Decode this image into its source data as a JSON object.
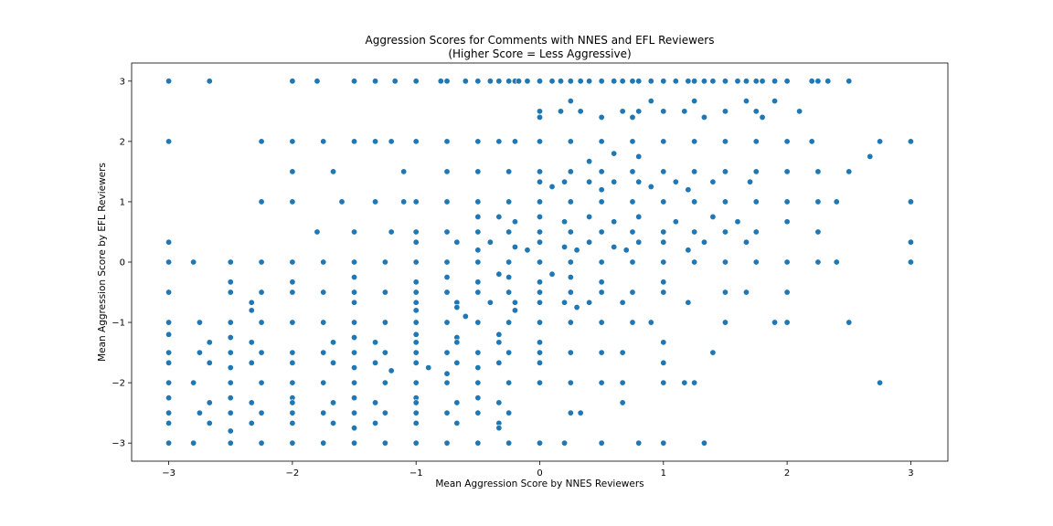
{
  "chart_data": {
    "type": "scatter",
    "title": "Aggression Scores for Comments with NNES and EFL Reviewers",
    "subtitle": "(Higher Score = Less Aggressive)",
    "xlabel": "Mean Aggression Score by NNES Reviewers",
    "ylabel": "Mean Aggression Score by EFL Reviewers",
    "xlim": [
      -3.3,
      3.3
    ],
    "ylim": [
      -3.3,
      3.3
    ],
    "xticks": [
      -3,
      -2,
      -1,
      0,
      1,
      2,
      3
    ],
    "yticks": [
      -3,
      -2,
      -1,
      0,
      1,
      2,
      3
    ],
    "xtick_labels": [
      "−3",
      "−2",
      "−1",
      "0",
      "1",
      "2",
      "3"
    ],
    "ytick_labels": [
      "−3",
      "−2",
      "−1",
      "0",
      "1",
      "2",
      "3"
    ],
    "grid": false,
    "series_color": "#1f77b4",
    "points": [
      [
        -3,
        3
      ],
      [
        -2.67,
        3
      ],
      [
        -2,
        3
      ],
      [
        -1.8,
        3
      ],
      [
        -1.5,
        3
      ],
      [
        -1.33,
        3
      ],
      [
        -1.17,
        3
      ],
      [
        -1,
        3
      ],
      [
        -0.8,
        3
      ],
      [
        -0.75,
        3
      ],
      [
        -0.6,
        3
      ],
      [
        -0.5,
        3
      ],
      [
        -0.4,
        3
      ],
      [
        -0.33,
        3
      ],
      [
        -0.25,
        3
      ],
      [
        -0.2,
        3
      ],
      [
        -0.17,
        3
      ],
      [
        -0.1,
        3
      ],
      [
        0,
        3
      ],
      [
        0.1,
        3
      ],
      [
        0.17,
        3
      ],
      [
        0.25,
        3
      ],
      [
        0.33,
        3
      ],
      [
        0.4,
        3
      ],
      [
        0.5,
        3
      ],
      [
        0.6,
        3
      ],
      [
        0.67,
        3
      ],
      [
        0.75,
        3
      ],
      [
        0.8,
        3
      ],
      [
        0.9,
        3
      ],
      [
        1,
        3
      ],
      [
        1.1,
        3
      ],
      [
        1.2,
        3
      ],
      [
        1.25,
        3
      ],
      [
        1.33,
        3
      ],
      [
        1.4,
        3
      ],
      [
        1.5,
        3
      ],
      [
        1.6,
        3
      ],
      [
        1.67,
        3
      ],
      [
        1.75,
        3
      ],
      [
        1.8,
        3
      ],
      [
        1.9,
        3
      ],
      [
        2,
        3
      ],
      [
        2.2,
        3
      ],
      [
        2.25,
        3
      ],
      [
        2.33,
        3
      ],
      [
        2.5,
        3
      ],
      [
        0,
        2.5
      ],
      [
        0,
        2.4
      ],
      [
        0.17,
        2.5
      ],
      [
        0.25,
        2.67
      ],
      [
        0.33,
        2.5
      ],
      [
        0.5,
        2.4
      ],
      [
        0.67,
        2.5
      ],
      [
        0.75,
        2.4
      ],
      [
        0.8,
        2.5
      ],
      [
        0.9,
        2.67
      ],
      [
        1,
        2.5
      ],
      [
        1.17,
        2.5
      ],
      [
        1.25,
        2.67
      ],
      [
        1.33,
        2.4
      ],
      [
        1.5,
        2.5
      ],
      [
        1.67,
        2.67
      ],
      [
        1.75,
        2.5
      ],
      [
        1.8,
        2.4
      ],
      [
        1.9,
        2.67
      ],
      [
        2.1,
        2.5
      ],
      [
        -3,
        2
      ],
      [
        -2.25,
        2
      ],
      [
        -2,
        2
      ],
      [
        -1.75,
        2
      ],
      [
        -1.5,
        2
      ],
      [
        -1.33,
        2
      ],
      [
        -1.2,
        2
      ],
      [
        -1,
        2
      ],
      [
        -0.75,
        2
      ],
      [
        -0.5,
        2
      ],
      [
        -0.33,
        2
      ],
      [
        -0.2,
        2
      ],
      [
        0,
        2
      ],
      [
        0.25,
        2
      ],
      [
        0.5,
        2
      ],
      [
        0.75,
        2
      ],
      [
        1,
        2
      ],
      [
        1.25,
        2
      ],
      [
        1.5,
        2
      ],
      [
        1.75,
        2
      ],
      [
        2,
        2
      ],
      [
        2.2,
        2
      ],
      [
        2.75,
        2
      ],
      [
        3,
        2
      ],
      [
        2.67,
        1.75
      ],
      [
        0.6,
        1.8
      ],
      [
        0.8,
        1.75
      ],
      [
        0.4,
        1.67
      ],
      [
        -2,
        1.5
      ],
      [
        -1.67,
        1.5
      ],
      [
        -1.1,
        1.5
      ],
      [
        -0.75,
        1.5
      ],
      [
        -0.5,
        1.5
      ],
      [
        -0.25,
        1.5
      ],
      [
        0,
        1.5
      ],
      [
        0.25,
        1.5
      ],
      [
        0.5,
        1.5
      ],
      [
        0.75,
        1.5
      ],
      [
        1,
        1.5
      ],
      [
        1.25,
        1.5
      ],
      [
        1.5,
        1.5
      ],
      [
        1.75,
        1.5
      ],
      [
        2,
        1.5
      ],
      [
        2.25,
        1.5
      ],
      [
        2.5,
        1.5
      ],
      [
        0,
        1.33
      ],
      [
        0.2,
        1.33
      ],
      [
        0.4,
        1.33
      ],
      [
        0.6,
        1.33
      ],
      [
        0.8,
        1.33
      ],
      [
        1.1,
        1.33
      ],
      [
        1.4,
        1.33
      ],
      [
        1.7,
        1.33
      ],
      [
        0.1,
        1.25
      ],
      [
        0.5,
        1.2
      ],
      [
        0.9,
        1.25
      ],
      [
        1.2,
        1.2
      ],
      [
        -2.25,
        1
      ],
      [
        -2,
        1
      ],
      [
        -1.6,
        1
      ],
      [
        -1.33,
        1
      ],
      [
        -1.1,
        1
      ],
      [
        -1,
        1
      ],
      [
        -0.75,
        1
      ],
      [
        -0.5,
        1
      ],
      [
        -0.25,
        1
      ],
      [
        0,
        1
      ],
      [
        0.25,
        1
      ],
      [
        0.5,
        1
      ],
      [
        0.75,
        1
      ],
      [
        1,
        1
      ],
      [
        1.25,
        1
      ],
      [
        1.5,
        1
      ],
      [
        1.75,
        1
      ],
      [
        2,
        1
      ],
      [
        2.25,
        1
      ],
      [
        2.4,
        1
      ],
      [
        3,
        1
      ],
      [
        -0.5,
        0.75
      ],
      [
        -0.33,
        0.75
      ],
      [
        -0.2,
        0.67
      ],
      [
        0,
        0.75
      ],
      [
        0.2,
        0.67
      ],
      [
        0.4,
        0.75
      ],
      [
        0.6,
        0.67
      ],
      [
        0.8,
        0.75
      ],
      [
        1.1,
        0.67
      ],
      [
        1.4,
        0.75
      ],
      [
        1.6,
        0.67
      ],
      [
        2,
        0.67
      ],
      [
        -1.8,
        0.5
      ],
      [
        -1.5,
        0.5
      ],
      [
        -1.2,
        0.5
      ],
      [
        -1,
        0.5
      ],
      [
        -0.75,
        0.5
      ],
      [
        -0.5,
        0.5
      ],
      [
        -0.25,
        0.5
      ],
      [
        0,
        0.5
      ],
      [
        0.25,
        0.5
      ],
      [
        0.5,
        0.5
      ],
      [
        0.75,
        0.5
      ],
      [
        1,
        0.5
      ],
      [
        1.25,
        0.5
      ],
      [
        1.5,
        0.5
      ],
      [
        1.75,
        0.5
      ],
      [
        2.25,
        0.5
      ],
      [
        -1,
        0.33
      ],
      [
        -0.67,
        0.33
      ],
      [
        -0.4,
        0.33
      ],
      [
        -0.2,
        0.25
      ],
      [
        0,
        0.33
      ],
      [
        0.2,
        0.25
      ],
      [
        0.4,
        0.33
      ],
      [
        0.6,
        0.25
      ],
      [
        0.8,
        0.33
      ],
      [
        1,
        0.33
      ],
      [
        1.33,
        0.33
      ],
      [
        1.67,
        0.33
      ],
      [
        3,
        0.33
      ],
      [
        -0.5,
        0.2
      ],
      [
        -0.1,
        0.2
      ],
      [
        0.3,
        0.2
      ],
      [
        0.7,
        0.2
      ],
      [
        1.2,
        0.2
      ],
      [
        -3,
        0.33
      ],
      [
        -3,
        0
      ],
      [
        -2.8,
        0
      ],
      [
        -2.5,
        0
      ],
      [
        -2.25,
        0
      ],
      [
        -2,
        0
      ],
      [
        -1.75,
        0
      ],
      [
        -1.5,
        0
      ],
      [
        -1.25,
        0
      ],
      [
        -1,
        0
      ],
      [
        -0.75,
        0
      ],
      [
        -0.5,
        0
      ],
      [
        -0.25,
        0
      ],
      [
        0,
        0
      ],
      [
        0.25,
        0
      ],
      [
        0.5,
        0
      ],
      [
        0.75,
        0
      ],
      [
        1,
        0
      ],
      [
        1.25,
        0
      ],
      [
        1.5,
        0
      ],
      [
        1.75,
        0
      ],
      [
        2,
        0
      ],
      [
        2.25,
        0
      ],
      [
        2.4,
        0
      ],
      [
        3,
        0
      ],
      [
        -2.5,
        -0.33
      ],
      [
        -2,
        -0.33
      ],
      [
        -1.5,
        -0.25
      ],
      [
        -1,
        -0.33
      ],
      [
        -0.75,
        -0.25
      ],
      [
        -0.5,
        -0.33
      ],
      [
        -0.25,
        -0.25
      ],
      [
        0,
        -0.33
      ],
      [
        0.25,
        -0.25
      ],
      [
        0.5,
        -0.33
      ],
      [
        1,
        -0.33
      ],
      [
        -0.33,
        -0.2
      ],
      [
        0.1,
        -0.2
      ],
      [
        -3,
        -0.5
      ],
      [
        -2.5,
        -0.5
      ],
      [
        -2.25,
        -0.5
      ],
      [
        -2,
        -0.5
      ],
      [
        -1.75,
        -0.5
      ],
      [
        -1.5,
        -0.5
      ],
      [
        -1.25,
        -0.5
      ],
      [
        -1,
        -0.5
      ],
      [
        -0.75,
        -0.5
      ],
      [
        -0.5,
        -0.5
      ],
      [
        -0.25,
        -0.5
      ],
      [
        0,
        -0.5
      ],
      [
        0.25,
        -0.5
      ],
      [
        0.5,
        -0.5
      ],
      [
        0.75,
        -0.5
      ],
      [
        1,
        -0.5
      ],
      [
        1.5,
        -0.5
      ],
      [
        1.67,
        -0.5
      ],
      [
        2,
        -0.5
      ],
      [
        -2.33,
        -0.67
      ],
      [
        -1.5,
        -0.67
      ],
      [
        -1,
        -0.67
      ],
      [
        -0.67,
        -0.67
      ],
      [
        -0.4,
        -0.67
      ],
      [
        -0.2,
        -0.67
      ],
      [
        0,
        -0.67
      ],
      [
        0.2,
        -0.67
      ],
      [
        0.4,
        -0.67
      ],
      [
        0.67,
        -0.67
      ],
      [
        1.2,
        -0.67
      ],
      [
        -2.33,
        -0.8
      ],
      [
        -1,
        -0.8
      ],
      [
        -0.67,
        -0.75
      ],
      [
        -0.2,
        -0.8
      ],
      [
        0.3,
        -0.75
      ],
      [
        -0.6,
        -0.9
      ],
      [
        -3,
        -1
      ],
      [
        -2.75,
        -1
      ],
      [
        -2.5,
        -1
      ],
      [
        -2.25,
        -1
      ],
      [
        -2,
        -1
      ],
      [
        -1.75,
        -1
      ],
      [
        -1.5,
        -1
      ],
      [
        -1.25,
        -1
      ],
      [
        -1,
        -1
      ],
      [
        -0.75,
        -1
      ],
      [
        -0.5,
        -1
      ],
      [
        -0.25,
        -1
      ],
      [
        0,
        -1
      ],
      [
        0.25,
        -1
      ],
      [
        0.5,
        -1
      ],
      [
        0.75,
        -1
      ],
      [
        0.9,
        -1
      ],
      [
        1.5,
        -1
      ],
      [
        1.9,
        -1
      ],
      [
        2,
        -1
      ],
      [
        2.5,
        -1
      ],
      [
        -3,
        -1.2
      ],
      [
        -2.5,
        -1.25
      ],
      [
        -1.5,
        -1.25
      ],
      [
        -1,
        -1.2
      ],
      [
        -0.67,
        -1.25
      ],
      [
        -0.33,
        -1.2
      ],
      [
        -2.67,
        -1.33
      ],
      [
        -2.33,
        -1.33
      ],
      [
        -1.67,
        -1.33
      ],
      [
        -1.33,
        -1.33
      ],
      [
        -1,
        -1.33
      ],
      [
        -0.67,
        -1.33
      ],
      [
        -0.33,
        -1.33
      ],
      [
        0,
        -1.33
      ],
      [
        1,
        -1.33
      ],
      [
        -3,
        -1.5
      ],
      [
        -2.75,
        -1.5
      ],
      [
        -2.5,
        -1.5
      ],
      [
        -2.25,
        -1.5
      ],
      [
        -2,
        -1.5
      ],
      [
        -1.75,
        -1.5
      ],
      [
        -1.5,
        -1.5
      ],
      [
        -1.25,
        -1.5
      ],
      [
        -1,
        -1.5
      ],
      [
        -0.75,
        -1.5
      ],
      [
        -0.5,
        -1.5
      ],
      [
        -0.25,
        -1.5
      ],
      [
        0,
        -1.5
      ],
      [
        0.25,
        -1.5
      ],
      [
        0.5,
        -1.5
      ],
      [
        0.67,
        -1.5
      ],
      [
        1.4,
        -1.5
      ],
      [
        -3,
        -1.67
      ],
      [
        -2.67,
        -1.67
      ],
      [
        -2.33,
        -1.67
      ],
      [
        -2,
        -1.67
      ],
      [
        -1.67,
        -1.67
      ],
      [
        -1.33,
        -1.67
      ],
      [
        -1,
        -1.67
      ],
      [
        -0.67,
        -1.67
      ],
      [
        -0.33,
        -1.67
      ],
      [
        0,
        -1.67
      ],
      [
        1,
        -1.67
      ],
      [
        -2.5,
        -1.75
      ],
      [
        -1.5,
        -1.75
      ],
      [
        -0.9,
        -1.75
      ],
      [
        -0.5,
        -1.75
      ],
      [
        -1.2,
        -1.8
      ],
      [
        -0.75,
        -1.85
      ],
      [
        -3,
        -2
      ],
      [
        -2.8,
        -2
      ],
      [
        -2.5,
        -2
      ],
      [
        -2.25,
        -2
      ],
      [
        -2,
        -2
      ],
      [
        -1.75,
        -2
      ],
      [
        -1.5,
        -2
      ],
      [
        -1.25,
        -2
      ],
      [
        -1,
        -2
      ],
      [
        -0.75,
        -2
      ],
      [
        -0.5,
        -2
      ],
      [
        -0.25,
        -2
      ],
      [
        0,
        -2
      ],
      [
        0.25,
        -2
      ],
      [
        0.5,
        -2
      ],
      [
        0.67,
        -2
      ],
      [
        1,
        -2
      ],
      [
        1.17,
        -2
      ],
      [
        1.25,
        -2
      ],
      [
        2.75,
        -2
      ],
      [
        -3,
        -2.25
      ],
      [
        -2.5,
        -2.25
      ],
      [
        -2,
        -2.25
      ],
      [
        -1.5,
        -2.25
      ],
      [
        -1,
        -2.25
      ],
      [
        -0.5,
        -2.25
      ],
      [
        -2.67,
        -2.33
      ],
      [
        -2.33,
        -2.33
      ],
      [
        -2,
        -2.33
      ],
      [
        -1.67,
        -2.33
      ],
      [
        -1.33,
        -2.33
      ],
      [
        -1,
        -2.33
      ],
      [
        -0.67,
        -2.33
      ],
      [
        -0.33,
        -2.33
      ],
      [
        0.67,
        -2.33
      ],
      [
        -3,
        -2.5
      ],
      [
        -2.75,
        -2.5
      ],
      [
        -2.5,
        -2.5
      ],
      [
        -2.25,
        -2.5
      ],
      [
        -2,
        -2.5
      ],
      [
        -1.75,
        -2.5
      ],
      [
        -1.5,
        -2.5
      ],
      [
        -1.25,
        -2.5
      ],
      [
        -1,
        -2.5
      ],
      [
        -0.75,
        -2.5
      ],
      [
        -0.5,
        -2.5
      ],
      [
        -0.25,
        -2.5
      ],
      [
        0.25,
        -2.5
      ],
      [
        0.33,
        -2.5
      ],
      [
        -3,
        -2.67
      ],
      [
        -2.67,
        -2.67
      ],
      [
        -2.33,
        -2.67
      ],
      [
        -2,
        -2.67
      ],
      [
        -1.67,
        -2.67
      ],
      [
        -1.33,
        -2.67
      ],
      [
        -1,
        -2.67
      ],
      [
        -0.67,
        -2.67
      ],
      [
        -0.33,
        -2.67
      ],
      [
        -2.5,
        -2.8
      ],
      [
        -1.5,
        -2.75
      ],
      [
        -0.33,
        -2.75
      ],
      [
        -3,
        -3
      ],
      [
        -2.8,
        -3
      ],
      [
        -2.5,
        -3
      ],
      [
        -2.25,
        -3
      ],
      [
        -2,
        -3
      ],
      [
        -1.75,
        -3
      ],
      [
        -1.5,
        -3
      ],
      [
        -1.25,
        -3
      ],
      [
        -1,
        -3
      ],
      [
        -0.75,
        -3
      ],
      [
        -0.5,
        -3
      ],
      [
        -0.25,
        -3
      ],
      [
        0,
        -3
      ],
      [
        0.2,
        -3
      ],
      [
        0.5,
        -3
      ],
      [
        0.8,
        -3
      ],
      [
        1,
        -3
      ],
      [
        1.33,
        -3
      ]
    ]
  }
}
